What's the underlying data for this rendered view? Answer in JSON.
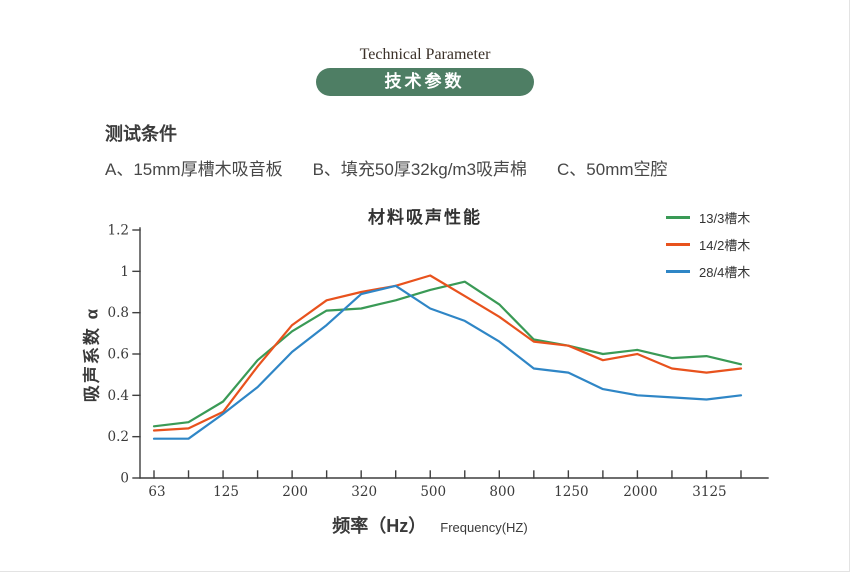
{
  "header": {
    "title_en": "Technical Parameter",
    "title_zh": "技术参数",
    "pill_color": "#4e7e64"
  },
  "conditions": {
    "title": "测试条件",
    "items": {
      "a": "A、15mm厚槽木吸音板",
      "b": "B、填充50厚32kg/m3吸声棉",
      "c": "C、50mm空腔"
    }
  },
  "chart_data": {
    "type": "line",
    "title": "材料吸声性能",
    "xlabel_zh": "频率（Hz）",
    "xlabel_en": "Frequency(HZ)",
    "ylabel": "吸声系数 α",
    "x": [
      63,
      80,
      125,
      160,
      200,
      250,
      320,
      400,
      500,
      630,
      800,
      1000,
      1250,
      1600,
      2000,
      2500,
      3125,
      4000
    ],
    "x_tick_labels": [
      "63",
      "125",
      "200",
      "320",
      "500",
      "800",
      "1250",
      "2000",
      "3125"
    ],
    "y_ticks": [
      0,
      0.2,
      0.4,
      0.6,
      0.8,
      1,
      1.2
    ],
    "ylim": [
      0,
      1.2
    ],
    "grid": false,
    "legend_position": "top-right",
    "series": [
      {
        "name": "13/3槽木",
        "color": "#3a9a56",
        "values": [
          0.25,
          0.27,
          0.37,
          0.57,
          0.71,
          0.81,
          0.82,
          0.86,
          0.91,
          0.95,
          0.84,
          0.67,
          0.64,
          0.6,
          0.62,
          0.58,
          0.59,
          0.55
        ]
      },
      {
        "name": "14/2槽木",
        "color": "#e8521d",
        "values": [
          0.23,
          0.24,
          0.32,
          0.54,
          0.74,
          0.86,
          0.9,
          0.93,
          0.98,
          0.88,
          0.78,
          0.66,
          0.64,
          0.57,
          0.6,
          0.53,
          0.51,
          0.53
        ]
      },
      {
        "name": "28/4槽木",
        "color": "#2f86c6",
        "values": [
          0.19,
          0.19,
          0.31,
          0.44,
          0.61,
          0.74,
          0.89,
          0.93,
          0.82,
          0.76,
          0.66,
          0.53,
          0.51,
          0.43,
          0.4,
          0.39,
          0.38,
          0.4
        ]
      }
    ]
  }
}
